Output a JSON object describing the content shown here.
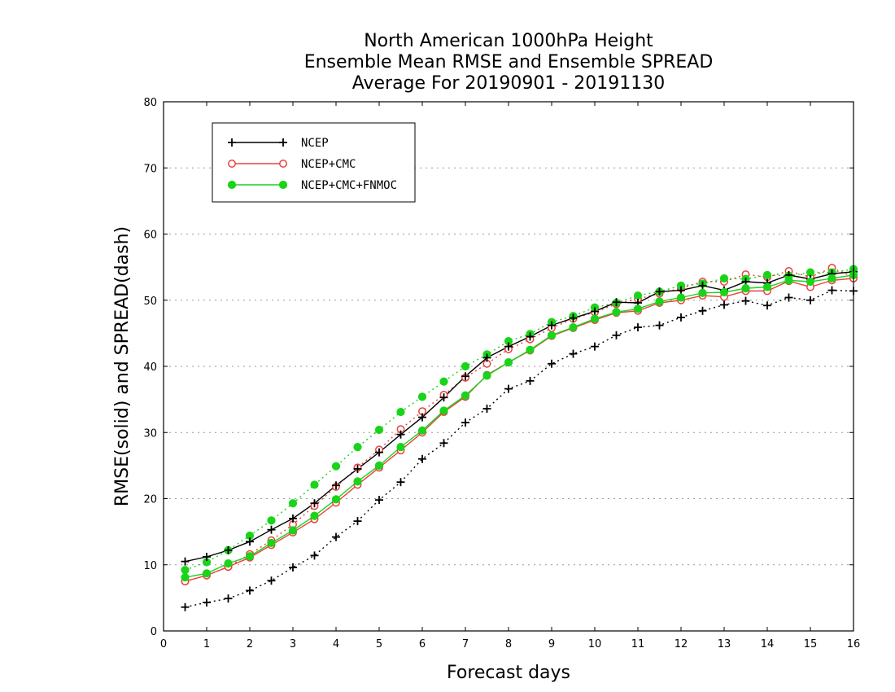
{
  "chart_data": {
    "type": "line",
    "title_lines": [
      "North American 1000hPa Height",
      "Ensemble Mean RMSE and Ensemble SPREAD",
      "Average For 20190901 - 20191130"
    ],
    "xlabel": "Forecast days",
    "ylabel": "RMSE(solid) and SPREAD(dash)",
    "xlim": [
      0,
      16
    ],
    "ylim": [
      0,
      80
    ],
    "xticks": [
      0,
      1,
      2,
      3,
      4,
      5,
      6,
      7,
      8,
      9,
      10,
      11,
      12,
      13,
      14,
      15,
      16
    ],
    "yticks": [
      0,
      10,
      20,
      30,
      40,
      50,
      60,
      70,
      80
    ],
    "grid": true,
    "legend_position": "top-left",
    "x": [
      0.5,
      1,
      1.5,
      2,
      2.5,
      3,
      3.5,
      4,
      4.5,
      5,
      5.5,
      6,
      6.5,
      7,
      7.5,
      8,
      8.5,
      9,
      9.5,
      10,
      10.5,
      11,
      11.5,
      12,
      12.5,
      13,
      13.5,
      14,
      14.5,
      15,
      15.5,
      16
    ],
    "series": [
      {
        "name": "NCEP",
        "color": "#000000",
        "marker": "plus",
        "rmse": [
          10.5,
          11.2,
          12.2,
          13.5,
          15.3,
          17.0,
          19.3,
          22.0,
          24.5,
          27.0,
          29.7,
          32.3,
          35.3,
          38.5,
          41.3,
          43.0,
          44.5,
          46.2,
          47.3,
          48.3,
          49.7,
          49.6,
          51.3,
          51.5,
          52.2,
          51.5,
          52.8,
          52.6,
          53.8,
          53.2,
          54.0,
          54.3
        ],
        "spread": [
          3.6,
          4.3,
          4.9,
          6.1,
          7.6,
          9.6,
          11.4,
          14.2,
          16.6,
          19.8,
          22.5,
          26.0,
          28.4,
          31.5,
          33.6,
          36.6,
          37.8,
          40.4,
          41.9,
          43.0,
          44.7,
          45.9,
          46.2,
          47.4,
          48.4,
          49.3,
          49.9,
          49.2,
          50.4,
          50.0,
          51.5,
          51.4
        ]
      },
      {
        "name": "NCEP+CMC",
        "color": "#e8403c",
        "marker": "open-circle",
        "rmse": [
          7.5,
          8.4,
          9.7,
          11.1,
          13.0,
          14.9,
          16.9,
          19.4,
          22.1,
          24.7,
          27.3,
          30.0,
          33.1,
          35.4,
          38.7,
          40.6,
          42.4,
          44.6,
          45.8,
          47.0,
          48.1,
          48.4,
          49.6,
          50.0,
          50.7,
          50.5,
          51.4,
          51.4,
          52.9,
          52.0,
          53.0,
          53.3
        ],
        "spread": [
          7.5,
          8.4,
          9.7,
          11.6,
          13.7,
          16.1,
          18.9,
          21.8,
          24.7,
          27.4,
          30.5,
          33.2,
          35.7,
          38.3,
          40.4,
          42.6,
          44.1,
          45.8,
          47.2,
          48.2,
          49.4,
          50.2,
          51.0,
          51.8,
          52.8,
          52.8,
          53.9,
          53.5,
          54.4,
          53.5,
          54.9,
          53.5
        ]
      },
      {
        "name": "NCEP+CMC+FNMOC",
        "color": "#19d419",
        "marker": "filled-circle",
        "rmse": [
          8.1,
          8.7,
          10.2,
          11.3,
          13.3,
          15.2,
          17.4,
          19.9,
          22.6,
          25.0,
          27.8,
          30.3,
          33.3,
          35.6,
          38.6,
          40.6,
          42.5,
          44.7,
          45.9,
          47.2,
          48.2,
          48.7,
          49.8,
          50.4,
          51.1,
          51.2,
          51.8,
          52.0,
          53.0,
          52.8,
          53.3,
          53.8
        ],
        "spread": [
          9.2,
          10.4,
          12.2,
          14.4,
          16.7,
          19.3,
          22.1,
          24.9,
          27.8,
          30.4,
          33.1,
          35.4,
          37.7,
          40.0,
          41.8,
          43.8,
          44.9,
          46.7,
          47.6,
          48.9,
          49.6,
          50.7,
          51.3,
          52.2,
          52.5,
          53.3,
          53.2,
          53.8,
          53.7,
          54.2,
          54.2,
          54.7
        ]
      }
    ]
  }
}
